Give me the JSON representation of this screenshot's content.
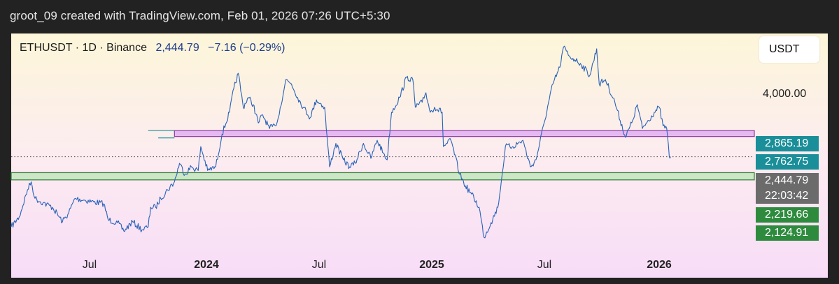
{
  "header": {
    "attribution": "groot_09 created with TradingView.com, Feb 01, 2026 07:26 UTC+5:30"
  },
  "legend": {
    "symbol": "ETHUSDT · 1D · Binance",
    "last_price": "2,444.79",
    "change": "−7.16 (−0.29%)"
  },
  "currency_button": "USDT",
  "price_axis": {
    "label": "4,000.00"
  },
  "price_tags": [
    {
      "text": "2,865.19",
      "color": "#1a8e99"
    },
    {
      "text": "2,762.75",
      "color": "#1a8e99"
    },
    {
      "text": "2,444.79",
      "color": "#6b6b6b"
    },
    {
      "text": "22:03:42",
      "color": "#6b6b6b"
    },
    {
      "text": "2,219.66",
      "color": "#2e8b3e"
    },
    {
      "text": "2,124.91",
      "color": "#2e8b3e"
    }
  ],
  "time_axis": [
    {
      "label": "Jul",
      "bold": false
    },
    {
      "label": "2024",
      "bold": true
    },
    {
      "label": "Jul",
      "bold": false
    },
    {
      "label": "2025",
      "bold": true
    },
    {
      "label": "Jul",
      "bold": false
    },
    {
      "label": "2026",
      "bold": true
    }
  ],
  "chart_data": {
    "type": "line",
    "title": "ETHUSDT · 1D · Binance",
    "xlabel": "",
    "ylabel": "",
    "x_range": [
      "2023-03-15",
      "2026-06-15"
    ],
    "y_scale": "log",
    "ylim": [
      1380,
      4900
    ],
    "series": [
      {
        "x": [
          "2023-03-15",
          "2023-03-28",
          "2023-04-10",
          "2023-04-16",
          "2023-04-22",
          "2023-05-05",
          "2023-05-20",
          "2023-06-05",
          "2023-06-15",
          "2023-06-25",
          "2023-07-10",
          "2023-07-25",
          "2023-08-10",
          "2023-08-17",
          "2023-09-01",
          "2023-09-11",
          "2023-09-25",
          "2023-10-10",
          "2023-10-20",
          "2023-10-24",
          "2023-11-01",
          "2023-11-09",
          "2023-11-20",
          "2023-12-01",
          "2023-12-09",
          "2023-12-18",
          "2023-12-28",
          "2024-01-08",
          "2024-01-12",
          "2024-01-23",
          "2024-02-05",
          "2024-02-15",
          "2024-02-27",
          "2024-03-05",
          "2024-03-12",
          "2024-03-20",
          "2024-03-28",
          "2024-04-05",
          "2024-04-13",
          "2024-04-20",
          "2024-05-01",
          "2024-05-10",
          "2024-05-15",
          "2024-05-27",
          "2024-06-05",
          "2024-06-15",
          "2024-06-24",
          "2024-07-05",
          "2024-07-15",
          "2024-07-28",
          "2024-08-05",
          "2024-08-15",
          "2024-08-27",
          "2024-09-06",
          "2024-09-15",
          "2024-09-28",
          "2024-10-10",
          "2024-10-20",
          "2024-10-30",
          "2024-11-05",
          "2024-11-12",
          "2024-11-25",
          "2024-12-06",
          "2024-12-16",
          "2024-12-20",
          "2024-12-31",
          "2025-01-06",
          "2025-01-13",
          "2025-01-20",
          "2025-02-01",
          "2025-02-03",
          "2025-02-15",
          "2025-03-01",
          "2025-03-10",
          "2025-03-20",
          "2025-04-01",
          "2025-04-09",
          "2025-04-20",
          "2025-05-01",
          "2025-05-08",
          "2025-05-13",
          "2025-05-25",
          "2025-06-10",
          "2025-06-22",
          "2025-07-01",
          "2025-07-14",
          "2025-07-28",
          "2025-08-08",
          "2025-08-14",
          "2025-08-23",
          "2025-09-01",
          "2025-09-10",
          "2025-09-25",
          "2025-10-06",
          "2025-10-10",
          "2025-10-20",
          "2025-11-04",
          "2025-11-21",
          "2025-12-01",
          "2025-12-10",
          "2025-12-18",
          "2026-01-06",
          "2026-01-14",
          "2026-01-20",
          "2026-01-26",
          "2026-01-30",
          "2026-02-01"
        ],
        "y": [
          1600,
          1700,
          2000,
          2100,
          1900,
          1850,
          1800,
          1650,
          1740,
          1900,
          1880,
          1860,
          1840,
          1670,
          1640,
          1560,
          1650,
          1570,
          1600,
          1800,
          1800,
          1900,
          2000,
          2100,
          2350,
          2200,
          2300,
          2250,
          2600,
          2250,
          2300,
          2800,
          3200,
          3700,
          4050,
          3300,
          3500,
          3350,
          3000,
          3150,
          2900,
          2950,
          3100,
          3900,
          3800,
          3500,
          3300,
          3100,
          3450,
          3300,
          2300,
          2650,
          2400,
          2300,
          2350,
          2650,
          2420,
          2700,
          2500,
          2400,
          3200,
          3500,
          3950,
          3900,
          3300,
          3400,
          3600,
          3200,
          3300,
          3200,
          2600,
          2700,
          2200,
          2050,
          1950,
          1800,
          1500,
          1640,
          1800,
          2200,
          2600,
          2600,
          2700,
          2300,
          2400,
          3000,
          3800,
          4200,
          4750,
          4500,
          4400,
          4300,
          4000,
          4700,
          3800,
          3900,
          3400,
          2750,
          3000,
          3350,
          2900,
          3200,
          3300,
          2950,
          2900,
          2450,
          2444.79
        ]
      }
    ],
    "levels": [
      {
        "name": "resistance_zone",
        "top": 2865.19,
        "bottom": 2762.75,
        "color": "#8a3f9e"
      },
      {
        "name": "support_zone",
        "top": 2219.66,
        "bottom": 2124.91,
        "color": "#2e7d32"
      },
      {
        "name": "last_price",
        "value": 2444.79
      }
    ],
    "grid": false,
    "legend": "top-left"
  }
}
